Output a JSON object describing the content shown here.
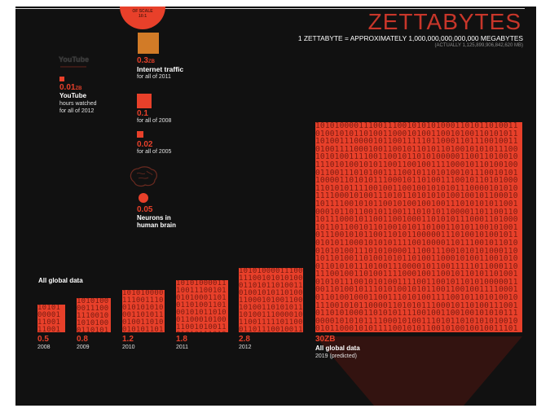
{
  "header": {
    "title": "ZETTABYTES",
    "subtitle": "1 ZETTABYTE = APPROXIMATELY 1,000,000,000,000,000 MEGABYTES",
    "note": "(ACTUALLY 1,125,899,906,842,620 MB)",
    "scale_badge_l1": "OF SCALE",
    "scale_badge_l2": "10:1"
  },
  "comparisons": [
    {
      "value": "0.3",
      "unit": "ZB",
      "label": "Internet traffic",
      "sub": "for all of 2011"
    },
    {
      "value": "0.01",
      "unit": "ZB",
      "label": "YouTube",
      "sub1": "hours watched",
      "sub2": "for all of 2012",
      "logo": "YouTube"
    },
    {
      "value": "0.1",
      "unit": "",
      "sub": "for all of 2008"
    },
    {
      "value": "0.02",
      "unit": "",
      "sub": "for all of 2005"
    },
    {
      "value": "0.05",
      "unit": "",
      "label1": "Neurons in",
      "label2": "human brain",
      "icon": "brain-icon"
    }
  ],
  "binary_text": "1010100001110011100101010100011010110100110100101011010011000101001100101001101010111010011100001011001111101100011011100100110100111100010011001011010110100101010111001010100111100110010110101000001100110100101110101001010110011001001111000101101001000110011101010011110010110101001011100101011000011010101110001011010011100101101010001101010111100100110010010101011100001010101111000101001110101101010101001001011000101011110010101100101001001001110101010110010001011011001011001110101011000011011001101011100010110011001000110101011100011010001011011001011010010101101001101011001010010111001010110011010110000011101001010010110101011000101010111100100001101110010110100101010011",
  "series_label": "All global data",
  "final_label": "All global data",
  "final_sub": "2019 (predicted)",
  "chart_data": {
    "type": "bar",
    "title": "ZETTABYTES",
    "categories": [
      "2008",
      "2009",
      "2010",
      "2011",
      "2012",
      "2019 (predicted)"
    ],
    "value_labels": [
      "0.5",
      "0.8",
      "1.2",
      "1.8",
      "2.8",
      "30ZB"
    ],
    "series": [
      {
        "name": "All global data",
        "values": [
          0.5,
          0.8,
          1.2,
          1.8,
          2.8,
          30
        ]
      }
    ],
    "comparison_values": {
      "Internet traffic (2011)": 0.3,
      "YouTube hours watched (2012)": 0.01,
      "2008": 0.1,
      "2005": 0.02,
      "Neurons in human brain": 0.05
    },
    "unit": "ZB",
    "colors": {
      "accent": "#e8402a",
      "background": "#111111"
    }
  }
}
